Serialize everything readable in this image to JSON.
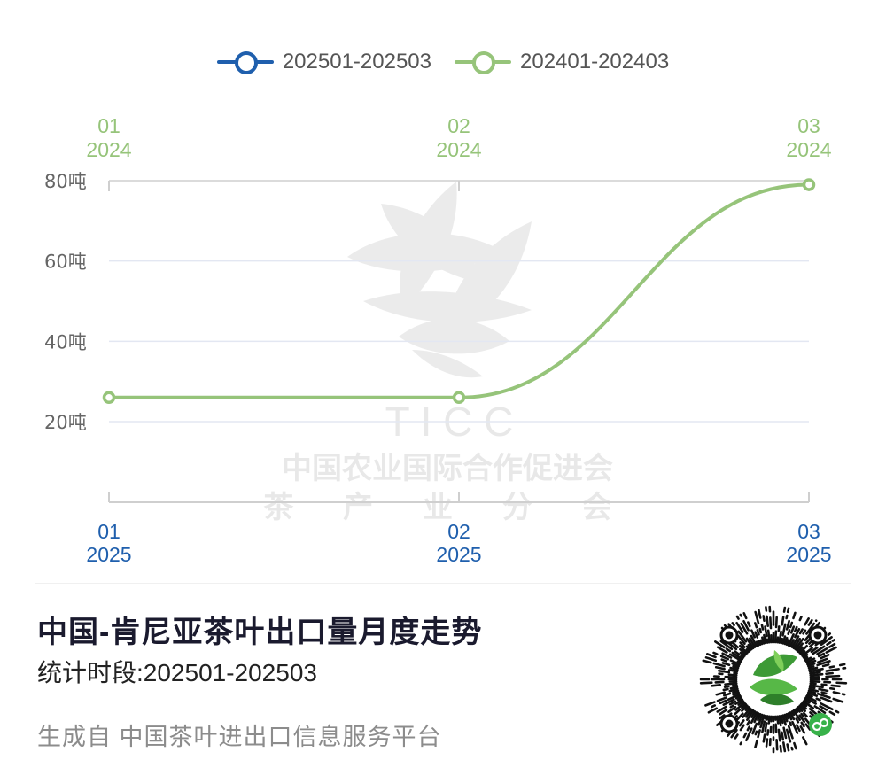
{
  "legend": [
    {
      "label": "202501-202503",
      "color": "#1f5fad"
    },
    {
      "label": "202401-202403",
      "color": "#96c47a"
    }
  ],
  "watermark": {
    "letters": "T I C C",
    "line1": "中国农业国际合作促进会",
    "line2": "茶 产 业 分 会"
  },
  "chart_data": {
    "type": "line",
    "x_top": [
      {
        "month": "01",
        "year": "2024"
      },
      {
        "month": "02",
        "year": "2024"
      },
      {
        "month": "03",
        "year": "2024"
      }
    ],
    "x_bottom": [
      {
        "month": "01",
        "year": "2025"
      },
      {
        "month": "02",
        "year": "2025"
      },
      {
        "month": "03",
        "year": "2025"
      }
    ],
    "y_ticks": [
      {
        "value": 20,
        "label": "20吨"
      },
      {
        "value": 40,
        "label": "40吨"
      },
      {
        "value": 60,
        "label": "60吨"
      },
      {
        "value": 80,
        "label": "80吨"
      }
    ],
    "ylim": [
      0,
      80
    ],
    "grid": true,
    "series": [
      {
        "name": "202401-202403",
        "color": "#96c47a",
        "values": [
          26,
          26,
          79
        ]
      },
      {
        "name": "202501-202503",
        "color": "#1f5fad",
        "values": []
      }
    ],
    "legend_position": "top-center"
  },
  "title": "中国-肯尼亚茶叶出口量月度走势",
  "subtitle": "统计时段:202501-202503",
  "footer": "生成自 中国茶叶进出口信息服务平台",
  "qr_icon": "qr-code-icon",
  "mini_program_icon": "link-icon"
}
